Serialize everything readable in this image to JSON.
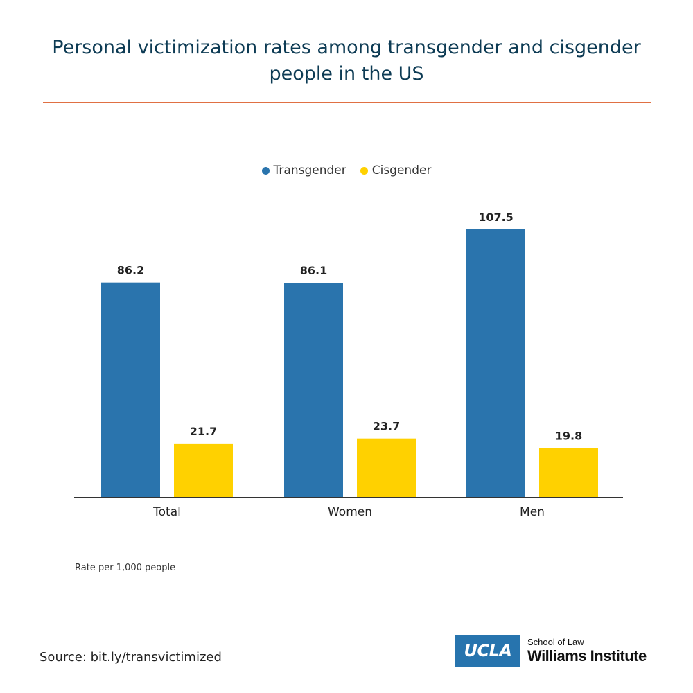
{
  "header": {
    "title_line1": "Personal victimization rates among transgender and cisgender",
    "title_line2": "people in the US"
  },
  "colors": {
    "title": "#0d3b54",
    "rule": "#e07043",
    "transgender": "#2a74ad",
    "cisgender": "#ffd100",
    "axis": "#333333",
    "brand": "#2774ae"
  },
  "chart_data": {
    "type": "bar",
    "title": "Personal victimization rates among transgender and cisgender people in the US",
    "categories": [
      "Total",
      "Women",
      "Men"
    ],
    "series": [
      {
        "name": "Transgender",
        "values": [
          86.2,
          86.1,
          107.5
        ]
      },
      {
        "name": "Cisgender",
        "values": [
          21.7,
          23.7,
          19.8
        ]
      }
    ],
    "ylim": [
      0,
      110
    ],
    "grid": false,
    "legend_position": "top-center",
    "data_labels": true,
    "xlabel": "",
    "ylabel": ""
  },
  "footer": {
    "note": "Rate per 1,000 people",
    "source": "Source: bit.ly/transvictimized",
    "logo_mark": "UCLA",
    "logo_school": "School of Law",
    "logo_institute": "Williams Institute"
  }
}
